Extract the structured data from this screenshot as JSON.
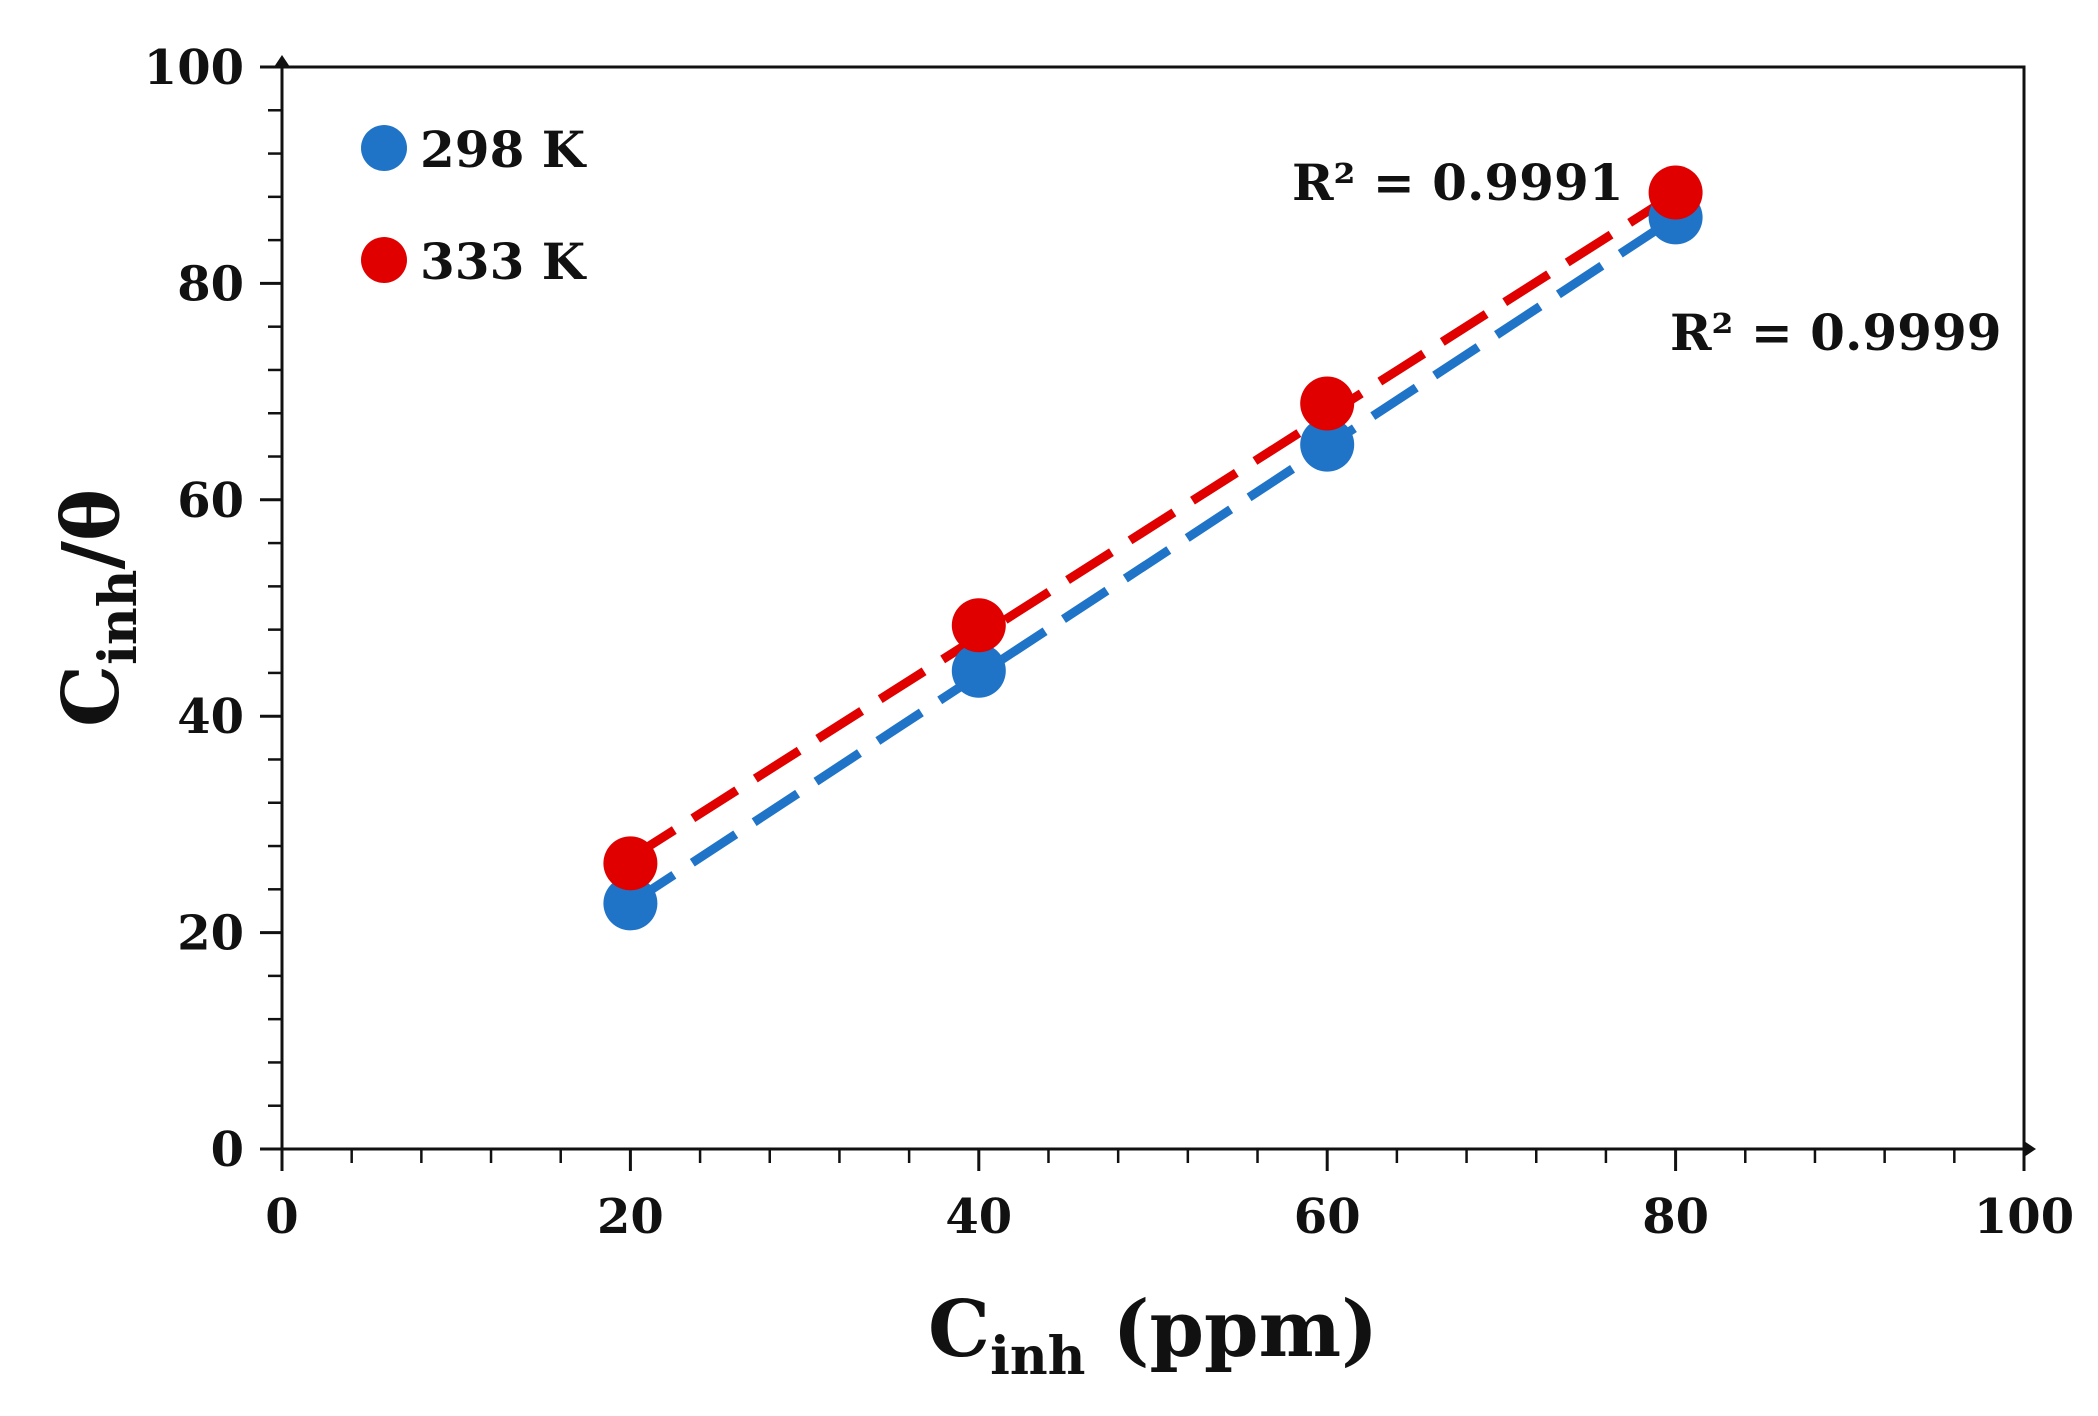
{
  "chart_data": {
    "type": "scatter",
    "title": "",
    "xlabel": {
      "main": "C",
      "sub": "inh",
      "suffix": " (ppm)"
    },
    "ylabel": {
      "main": "C",
      "sub": "inh",
      "suffix": "/θ"
    },
    "xlim": [
      0,
      100
    ],
    "ylim": [
      0,
      100
    ],
    "x_major_ticks": [
      0,
      20,
      40,
      60,
      80,
      100
    ],
    "y_major_ticks": [
      0,
      20,
      40,
      60,
      80,
      100
    ],
    "x_tick_labels": [
      "0",
      "20",
      "40",
      "60",
      "80",
      "100"
    ],
    "y_tick_labels": [
      "0",
      "20",
      "40",
      "60",
      "80",
      "100"
    ],
    "x_minor_step": 4,
    "y_minor_step": 4,
    "legend_position": "top-left",
    "series": [
      {
        "name": "298 K",
        "color": "#1f74c8",
        "x": [
          20,
          40,
          60,
          80
        ],
        "y": [
          22.7,
          44.2,
          65.1,
          86.1
        ],
        "trendline": {
          "type": "linear",
          "style": "dashed",
          "from_x": 20,
          "to_x": 80,
          "y_start": 22.7,
          "y_end": 86.1
        },
        "r_squared_label": "R² = 0.9999"
      },
      {
        "name": "333 K",
        "color": "#e00000",
        "x": [
          20,
          40,
          60,
          80
        ],
        "y": [
          26.4,
          48.4,
          68.9,
          88.4
        ],
        "trendline": {
          "type": "linear",
          "style": "dashed",
          "from_x": 20,
          "to_x": 80,
          "y_start": 26.9,
          "y_end": 88.3
        },
        "r_squared_label": "R² = 0.9991"
      }
    ]
  }
}
